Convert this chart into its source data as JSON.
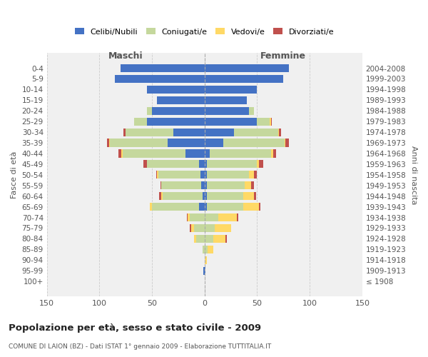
{
  "age_groups": [
    "100+",
    "95-99",
    "90-94",
    "85-89",
    "80-84",
    "75-79",
    "70-74",
    "65-69",
    "60-64",
    "55-59",
    "50-54",
    "45-49",
    "40-44",
    "35-39",
    "30-34",
    "25-29",
    "20-24",
    "15-19",
    "10-14",
    "5-9",
    "0-4"
  ],
  "birth_years": [
    "≤ 1908",
    "1909-1913",
    "1914-1918",
    "1919-1923",
    "1924-1928",
    "1929-1933",
    "1934-1938",
    "1939-1943",
    "1944-1948",
    "1949-1953",
    "1954-1958",
    "1959-1963",
    "1964-1968",
    "1969-1973",
    "1974-1978",
    "1979-1983",
    "1984-1988",
    "1989-1993",
    "1994-1998",
    "1999-2003",
    "2004-2008"
  ],
  "male": {
    "celibi": [
      0,
      1,
      0,
      0,
      0,
      0,
      0,
      5,
      2,
      3,
      4,
      5,
      18,
      35,
      30,
      55,
      50,
      45,
      55,
      85,
      80
    ],
    "coniugati": [
      0,
      0,
      0,
      2,
      8,
      10,
      14,
      45,
      38,
      38,
      40,
      50,
      60,
      55,
      45,
      12,
      5,
      0,
      0,
      0,
      0
    ],
    "vedovi": [
      0,
      0,
      0,
      0,
      2,
      3,
      2,
      2,
      1,
      0,
      1,
      0,
      1,
      1,
      0,
      0,
      0,
      0,
      0,
      0,
      0
    ],
    "divorziati": [
      0,
      0,
      0,
      0,
      0,
      1,
      1,
      0,
      2,
      1,
      1,
      3,
      3,
      2,
      2,
      0,
      0,
      0,
      0,
      0,
      0
    ]
  },
  "female": {
    "nubili": [
      0,
      1,
      0,
      0,
      0,
      0,
      0,
      2,
      2,
      2,
      2,
      2,
      5,
      18,
      28,
      50,
      42,
      40,
      50,
      75,
      80
    ],
    "coniugate": [
      0,
      0,
      0,
      3,
      8,
      10,
      13,
      35,
      35,
      36,
      40,
      48,
      58,
      58,
      42,
      12,
      5,
      0,
      0,
      0,
      0
    ],
    "vedove": [
      0,
      0,
      2,
      5,
      12,
      15,
      18,
      15,
      10,
      6,
      5,
      2,
      2,
      1,
      1,
      1,
      0,
      0,
      0,
      0,
      0
    ],
    "divorziate": [
      0,
      0,
      0,
      0,
      1,
      0,
      1,
      1,
      2,
      3,
      3,
      4,
      3,
      3,
      2,
      1,
      0,
      0,
      0,
      0,
      0
    ]
  },
  "colors": {
    "celibi": "#4472C4",
    "coniugati": "#C5D89D",
    "vedovi": "#FFD966",
    "divorziati": "#C0504D"
  },
  "legend_labels": [
    "Celibi/Nubili",
    "Coniugati/e",
    "Vedovi/e",
    "Divorziati/e"
  ],
  "title": "Popolazione per età, sesso e stato civile - 2009",
  "subtitle": "COMUNE DI LAION (BZ) - Dati ISTAT 1° gennaio 2009 - Elaborazione TUTTITALIA.IT",
  "xlim": 150,
  "bg_color": "#f0f0f0",
  "grid_color": "#cccccc"
}
